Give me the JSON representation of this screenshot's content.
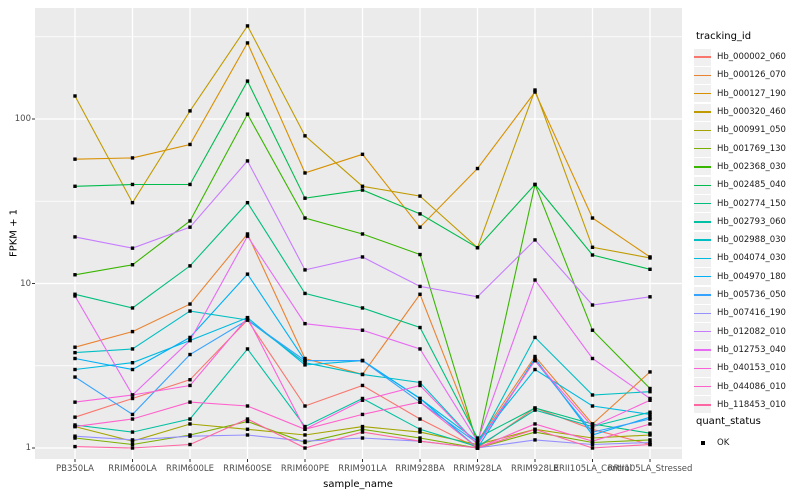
{
  "figure": {
    "bg": "#FFFFFF",
    "panel_bg": "#EBEBEB",
    "grid_color": "#FFFFFF",
    "axis_text_color": "#4D4D4D",
    "point_color": "#000000"
  },
  "chart_data": {
    "type": "line",
    "title": "",
    "xlabel": "sample_name",
    "ylabel": "FPKM + 1",
    "y_scale": "log10",
    "y_tick_labels": [
      "100",
      "10",
      "1"
    ],
    "y_tick_values": [
      100,
      10,
      1
    ],
    "ylim": [
      0.9,
      470
    ],
    "grid": "white major/minor gridlines on gray panel",
    "legend_position": "right",
    "categories": [
      "PB350LA",
      "RRIM600LA",
      "RRIM600LE",
      "RRIM600SE",
      "RRIM600PE",
      "RRIM901LA",
      "RRIM928BA",
      "RRIM928LA",
      "RRIM928LE",
      "RRII105LA_Control",
      "RRII105LA_Stressed"
    ],
    "legend_title": "tracking_id",
    "series": [
      {
        "name": "Hb_000002_060",
        "color": "#F8766D",
        "values": [
          1.54,
          2.0,
          2.6,
          6.0,
          1.8,
          2.4,
          1.5,
          1.0,
          1.75,
          1.3,
          1.05
        ]
      },
      {
        "name": "Hb_000126_070",
        "color": "#EA8331",
        "values": [
          4.1,
          5.1,
          7.5,
          20,
          3.5,
          2.8,
          8.6,
          1.1,
          3.6,
          1.4,
          2.9
        ]
      },
      {
        "name": "Hb_000127_190",
        "color": "#D89000",
        "values": [
          57,
          58,
          70,
          290,
          47,
          61,
          22,
          50,
          146,
          25,
          14.5
        ]
      },
      {
        "name": "Hb_000320_460",
        "color": "#C09B00",
        "values": [
          138,
          31,
          112,
          368,
          79,
          39,
          34,
          16.5,
          150,
          16.6,
          14.3
        ]
      },
      {
        "name": "Hb_000991_050",
        "color": "#A3A500",
        "values": [
          1.35,
          1.1,
          1.4,
          1.3,
          1.2,
          1.35,
          1.25,
          1.05,
          1.3,
          1.15,
          1.2
        ]
      },
      {
        "name": "Hb_001769_130",
        "color": "#7CAE00",
        "values": [
          1.15,
          1.05,
          1.2,
          1.45,
          1.08,
          1.3,
          1.15,
          1.0,
          1.25,
          1.08,
          1.12
        ]
      },
      {
        "name": "Hb_002368_030",
        "color": "#39B600",
        "values": [
          11.3,
          13,
          24,
          107,
          25,
          20,
          15,
          1.05,
          40,
          5.2,
          2.3
        ]
      },
      {
        "name": "Hb_002485_040",
        "color": "#00BB4E",
        "values": [
          39,
          40,
          40,
          170,
          33,
          37,
          26.5,
          16.5,
          40,
          14.9,
          12.2
        ]
      },
      {
        "name": "Hb_002774_150",
        "color": "#00BF7D",
        "values": [
          8.6,
          7.1,
          12.8,
          31,
          8.7,
          7.1,
          5.4,
          1.15,
          1.75,
          1.4,
          1.23
        ]
      },
      {
        "name": "Hb_002793_060",
        "color": "#00C1A3",
        "values": [
          1.38,
          1.25,
          1.5,
          4.0,
          1.35,
          2.0,
          1.3,
          1.02,
          1.7,
          1.35,
          1.65
        ]
      },
      {
        "name": "Hb_002988_030",
        "color": "#00BFC4",
        "values": [
          3.8,
          4.0,
          6.8,
          6.0,
          3.3,
          2.8,
          2.5,
          1.05,
          4.7,
          2.1,
          2.2
        ]
      },
      {
        "name": "Hb_004074_030",
        "color": "#00BAE0",
        "values": [
          3.0,
          3.3,
          4.5,
          6.2,
          3.2,
          3.4,
          2.0,
          1.1,
          3.0,
          1.8,
          1.6
        ]
      },
      {
        "name": "Hb_004970_180",
        "color": "#00B0F6",
        "values": [
          3.5,
          3.0,
          4.7,
          11.4,
          3.4,
          3.4,
          2.0,
          1.0,
          3.5,
          1.2,
          1.54
        ]
      },
      {
        "name": "Hb_005736_050",
        "color": "#35A2FF",
        "values": [
          2.7,
          1.6,
          3.7,
          6.0,
          3.4,
          3.4,
          1.9,
          1.07,
          3.4,
          1.25,
          1.5
        ]
      },
      {
        "name": "Hb_007416_190",
        "color": "#9590FF",
        "values": [
          1.18,
          1.12,
          1.18,
          1.2,
          1.1,
          1.15,
          1.1,
          1.0,
          1.12,
          1.05,
          1.08
        ]
      },
      {
        "name": "Hb_012082_010",
        "color": "#C77CFF",
        "values": [
          19.2,
          16.4,
          22,
          55.6,
          12.1,
          14.5,
          9.6,
          8.3,
          18.4,
          7.4,
          8.3
        ]
      },
      {
        "name": "Hb_012753_040",
        "color": "#E76BF3",
        "values": [
          8.4,
          2.1,
          4.5,
          19.4,
          5.7,
          5.2,
          4.0,
          1.1,
          10.5,
          3.5,
          2.0
        ]
      },
      {
        "name": "Hb_040153_010",
        "color": "#FA62DB",
        "values": [
          1.9,
          2.1,
          2.4,
          6.2,
          1.3,
          1.95,
          2.4,
          1.05,
          3.4,
          1.35,
          1.95
        ]
      },
      {
        "name": "Hb_044086_010",
        "color": "#FF61CC",
        "values": [
          1.35,
          1.5,
          1.9,
          1.8,
          1.3,
          1.6,
          1.9,
          1.0,
          1.4,
          1.1,
          1.4
        ]
      },
      {
        "name": "Hb_118453_010",
        "color": "#FF67A4",
        "values": [
          1.02,
          1.0,
          1.05,
          1.5,
          1.0,
          1.25,
          1.1,
          1.0,
          1.3,
          1.0,
          1.05
        ]
      }
    ],
    "legend2": {
      "title": "quant_status",
      "items": [
        {
          "label": "OK",
          "marker": "black-square"
        }
      ]
    }
  }
}
